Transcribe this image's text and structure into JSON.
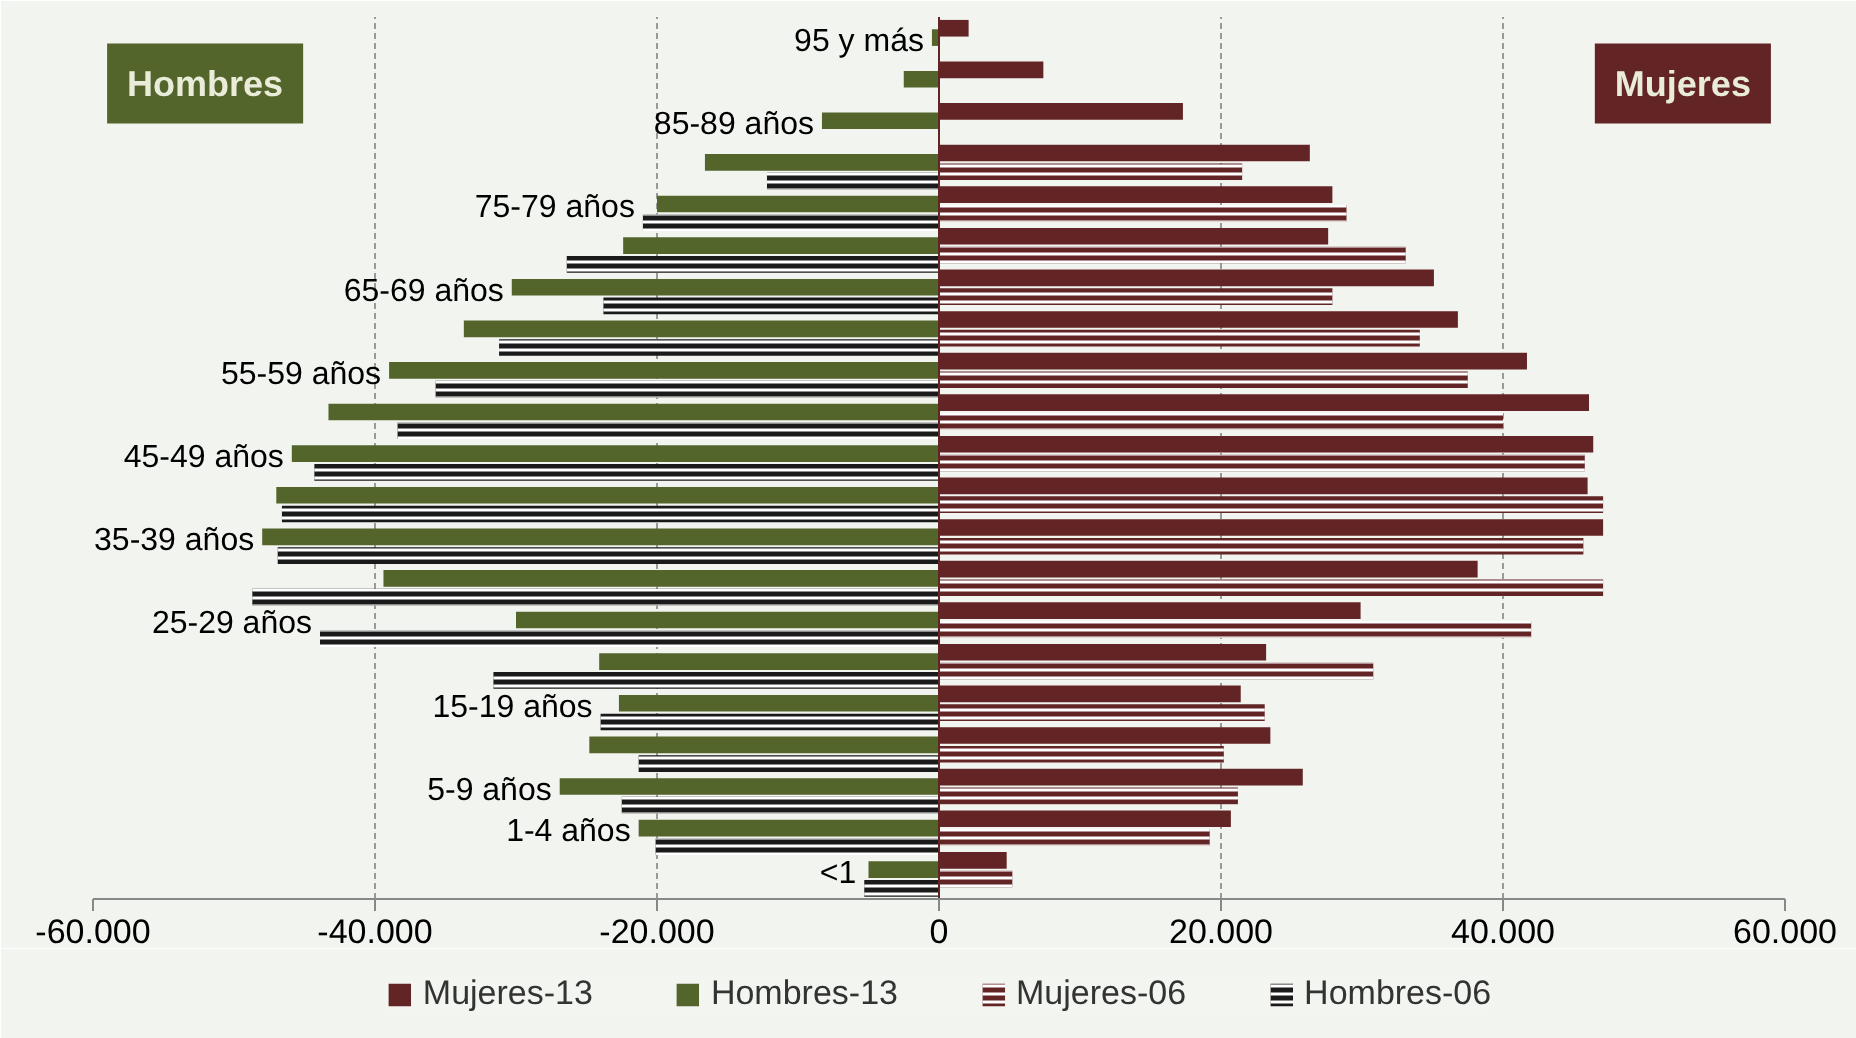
{
  "chart_data": {
    "type": "bar",
    "orientation": "horizontal",
    "categories": [
      "95 y más",
      null,
      "85-89 años",
      null,
      "75-79 años",
      null,
      "65-69 años",
      null,
      "55-59 años",
      null,
      "45-49 años",
      null,
      "35-39 años",
      null,
      "25-29 años",
      null,
      "15-19 años",
      null,
      "5-9 años",
      "1-4 años",
      "<1"
    ],
    "series": [
      {
        "name": "Mujeres-13",
        "color": "#632426",
        "values": [
          2100,
          7400,
          17300,
          26300,
          27900,
          27600,
          35100,
          36800,
          41700,
          46100,
          46400,
          46000,
          47100,
          38200,
          29900,
          23200,
          21400,
          23500,
          25800,
          20700,
          4800
        ]
      },
      {
        "name": "Hombres-13",
        "color": "#53652a",
        "values": [
          -500,
          -2500,
          -8300,
          -16600,
          -20000,
          -22400,
          -30300,
          -33700,
          -39000,
          -43300,
          -45900,
          -47000,
          -48000,
          -39400,
          -30000,
          -24100,
          -22700,
          -24800,
          -26900,
          -21300,
          -5000
        ]
      },
      {
        "name": "Mujeres-06",
        "color": "#632426",
        "values": [
          null,
          null,
          null,
          21500,
          28900,
          33100,
          27900,
          34100,
          37500,
          40000,
          45800,
          47100,
          45700,
          47100,
          42000,
          30800,
          23100,
          20200,
          21200,
          19200,
          5200
        ]
      },
      {
        "name": "Hombres-06",
        "color": "#1a1a1a",
        "values": [
          null,
          null,
          null,
          -12200,
          -21000,
          -26400,
          -23800,
          -31200,
          -35700,
          -38400,
          -44300,
          -46600,
          -46900,
          -48700,
          -43900,
          -31600,
          -24000,
          -21300,
          -22500,
          -20100,
          -5300
        ]
      }
    ],
    "xlim": [
      -60000,
      60000
    ],
    "xticks": [
      {
        "value": -60000,
        "label": "-60.000"
      },
      {
        "value": -40000,
        "label": "-40.000"
      },
      {
        "value": -20000,
        "label": "-20.000"
      },
      0,
      {
        "value": 20000,
        "label": "20.000"
      },
      {
        "value": 40000,
        "label": "40.000"
      },
      {
        "value": 60000,
        "label": "60.000"
      }
    ],
    "grid": "x",
    "legend": "bottom",
    "annotations": [
      "Hombres",
      "Mujeres"
    ]
  }
}
